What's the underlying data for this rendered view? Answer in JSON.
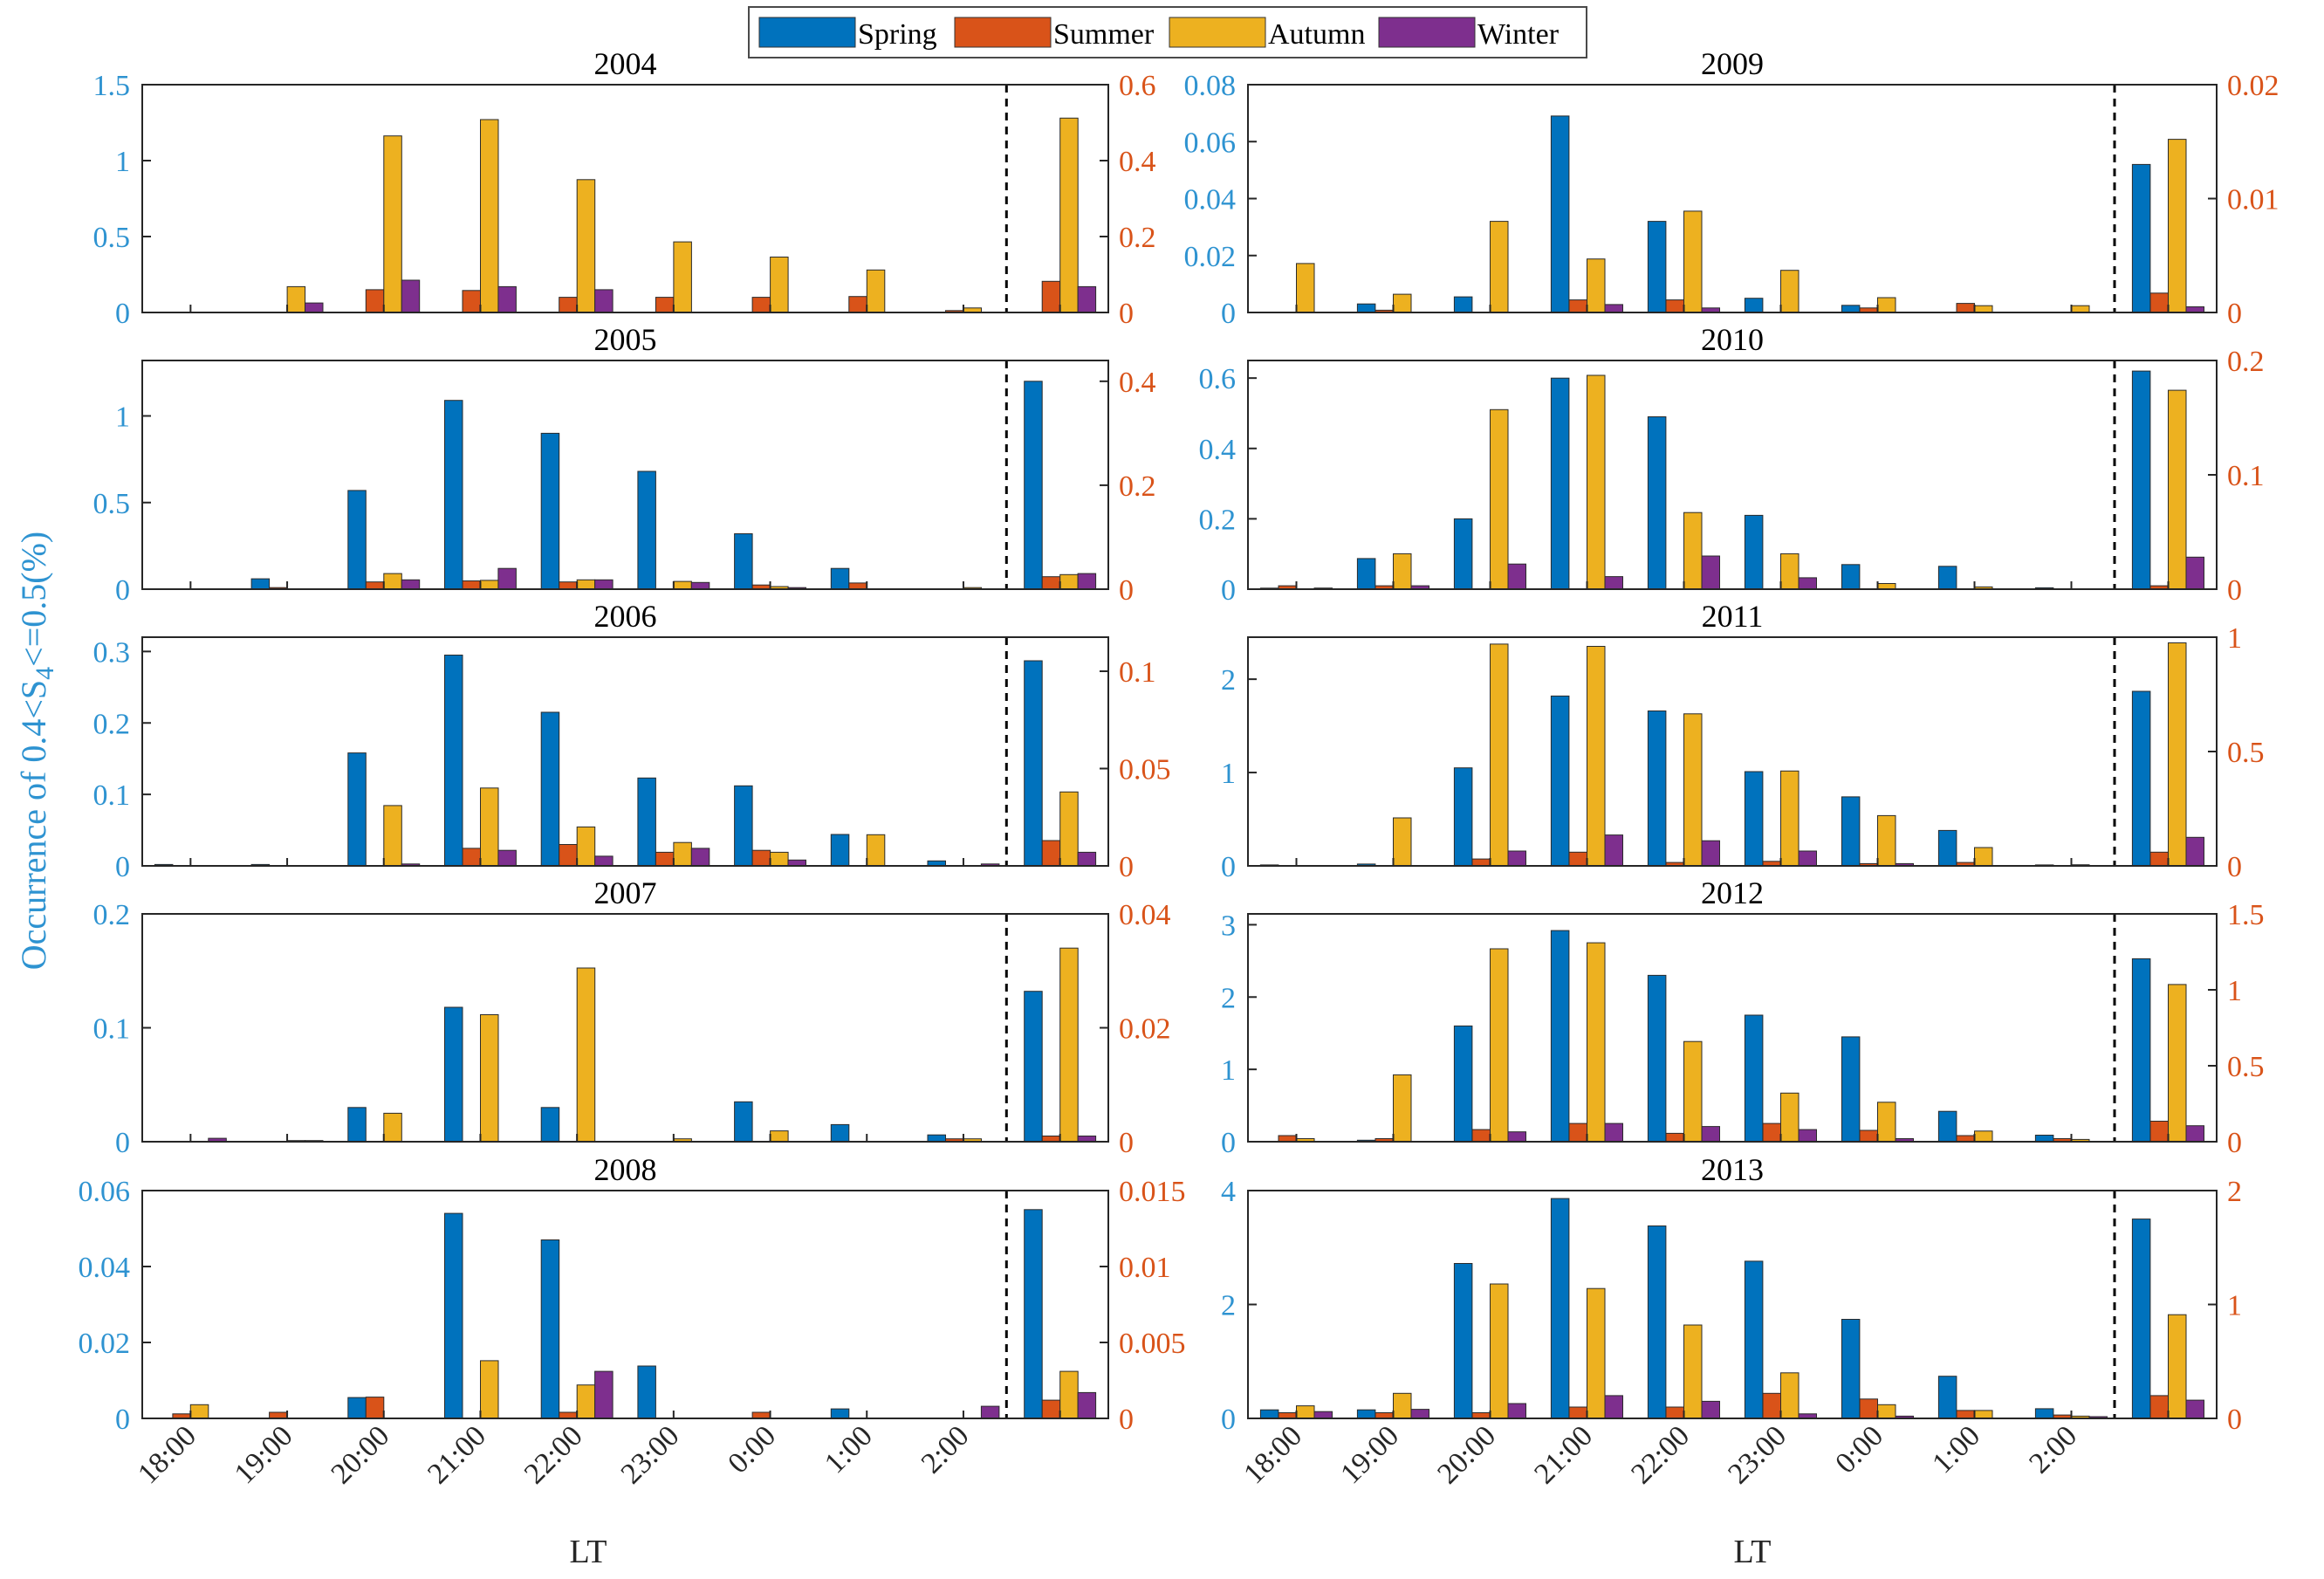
{
  "colors": {
    "spring": "#0072BD",
    "summer": "#D95319",
    "autumn": "#EDB120",
    "winter": "#7E2F8E",
    "left_axis": "#2E93D1",
    "right_axis": "#D95319"
  },
  "legend": {
    "spring": "Spring",
    "summer": "Summer",
    "autumn": "Autumn",
    "winter": "Winter"
  },
  "axes_text": {
    "ylabel_prefix": "Occurrence of 0.4<S",
    "ylabel_sub": "4",
    "ylabel_suffix": "<=0.5(%)",
    "xlabel_left": "LT",
    "xlabel_right": "LT"
  },
  "chart_data": {
    "type": "bar",
    "categories": [
      "18:00",
      "19:00",
      "20:00",
      "21:00",
      "22:00",
      "23:00",
      "0:00",
      "1:00",
      "2:00",
      ""
    ],
    "series_names": [
      "Spring",
      "Summer",
      "Autumn",
      "Winter"
    ],
    "note": "Spring uses left y-axis; Summer, Autumn, Winter use right y-axis. Last group (after dashed line) is the total.",
    "panels": [
      {
        "title": "2004",
        "yleft": {
          "lim": [
            0,
            1.5
          ],
          "ticks": [
            0,
            0.5,
            1,
            1.5
          ],
          "labels": [
            "0",
            "0.5",
            "1",
            "1.5"
          ]
        },
        "yright": {
          "lim": [
            0,
            0.6
          ],
          "ticks": [
            0,
            0.2,
            0.4,
            0.6
          ],
          "labels": [
            "0",
            "0.2",
            "0.4",
            "0.6"
          ]
        },
        "spring": [
          0,
          0,
          0,
          0,
          0,
          0,
          0,
          0,
          0,
          0
        ],
        "summer": [
          0,
          0,
          0.06,
          0.058,
          0.04,
          0.04,
          0.04,
          0.042,
          0.005,
          0.082
        ],
        "autumn": [
          0,
          0.068,
          0.465,
          0.508,
          0.35,
          0.186,
          0.146,
          0.112,
          0.012,
          0.512
        ],
        "winter": [
          0,
          0.025,
          0.085,
          0.068,
          0.06,
          0,
          0,
          0,
          0,
          0.068
        ]
      },
      {
        "title": "2005",
        "yleft": {
          "lim": [
            0,
            1.32
          ],
          "ticks": [
            0,
            0.5,
            1
          ],
          "labels": [
            "0",
            "0.5",
            "1"
          ]
        },
        "yright": {
          "lim": [
            0,
            0.44
          ],
          "ticks": [
            0,
            0.2,
            0.4
          ],
          "labels": [
            "0",
            "0.2",
            "0.4"
          ]
        },
        "spring": [
          0,
          0.06,
          0.57,
          1.09,
          0.9,
          0.68,
          0.32,
          0.12,
          0,
          1.2
        ],
        "summer": [
          0,
          0.003,
          0.014,
          0.016,
          0.014,
          0,
          0.008,
          0.012,
          0,
          0.024
        ],
        "autumn": [
          0,
          0,
          0.03,
          0.017,
          0.018,
          0.015,
          0.005,
          0,
          0.003,
          0.028
        ],
        "winter": [
          0,
          0,
          0.018,
          0.04,
          0.018,
          0.013,
          0.003,
          0,
          0,
          0.03
        ]
      },
      {
        "title": "2006",
        "yleft": {
          "lim": [
            0,
            0.32
          ],
          "ticks": [
            0,
            0.1,
            0.2,
            0.3
          ],
          "labels": [
            "0",
            "0.1",
            "0.2",
            "0.3"
          ]
        },
        "yright": {
          "lim": [
            0,
            0.1175
          ],
          "ticks": [
            0,
            0.05,
            0.1
          ],
          "labels": [
            "0",
            "0.05",
            "0.1"
          ]
        },
        "spring": [
          0.002,
          0.002,
          0.158,
          0.295,
          0.215,
          0.123,
          0.112,
          0.044,
          0.007,
          0.287
        ],
        "summer": [
          0,
          0,
          0,
          0.009,
          0.011,
          0.007,
          0.008,
          0,
          0,
          0.013
        ],
        "autumn": [
          0,
          0,
          0.031,
          0.04,
          0.02,
          0.012,
          0.007,
          0.016,
          0,
          0.038
        ],
        "winter": [
          0,
          0,
          0.001,
          0.008,
          0.005,
          0.009,
          0.003,
          0,
          0.001,
          0.007
        ]
      },
      {
        "title": "2007",
        "yleft": {
          "lim": [
            0,
            0.2
          ],
          "ticks": [
            0,
            0.1,
            0.2
          ],
          "labels": [
            "0",
            "0.1",
            "0.2"
          ]
        },
        "yright": {
          "lim": [
            0,
            0.04
          ],
          "ticks": [
            0,
            0.02,
            0.04
          ],
          "labels": [
            "0",
            "0.02",
            "0.04"
          ]
        },
        "spring": [
          0,
          0,
          0.03,
          0.118,
          0.03,
          0,
          0.035,
          0.015,
          0.006,
          0.132
        ],
        "summer": [
          0,
          0,
          0,
          0,
          0,
          0,
          0,
          0,
          0.0005,
          0.001
        ],
        "autumn": [
          0,
          0.0002,
          0.005,
          0.0223,
          0.0305,
          0.0005,
          0.0019,
          0,
          0.0005,
          0.034
        ],
        "winter": [
          0.0006,
          0.0002,
          0,
          0,
          0,
          0,
          0,
          0,
          0,
          0.001
        ]
      },
      {
        "title": "2008",
        "yleft": {
          "lim": [
            0,
            0.06
          ],
          "ticks": [
            0,
            0.02,
            0.04,
            0.06
          ],
          "labels": [
            "0",
            "0.02",
            "0.04",
            "0.06"
          ]
        },
        "yright": {
          "lim": [
            0,
            0.015
          ],
          "ticks": [
            0,
            0.005,
            0.01,
            0.015
          ],
          "labels": [
            "0",
            "0.005",
            "0.01",
            "0.015"
          ]
        },
        "spring": [
          0,
          0,
          0.0055,
          0.054,
          0.047,
          0.0138,
          0,
          0.0025,
          0,
          0.055
        ],
        "summer": [
          0.0003,
          0.0004,
          0.0014,
          0,
          0.0004,
          0,
          0.0004,
          0,
          0,
          0.0012
        ],
        "autumn": [
          0.0009,
          0,
          0,
          0.0038,
          0.0022,
          0,
          0,
          0,
          0,
          0.0031
        ],
        "winter": [
          0,
          0,
          0,
          0,
          0.0031,
          0,
          0,
          0,
          0.0008,
          0.0017
        ]
      },
      {
        "title": "2009",
        "yleft": {
          "lim": [
            0,
            0.08
          ],
          "ticks": [
            0,
            0.02,
            0.04,
            0.06,
            0.08
          ],
          "labels": [
            "0",
            "0.02",
            "0.04",
            "0.06",
            "0.08"
          ]
        },
        "yright": {
          "lim": [
            0,
            0.02
          ],
          "ticks": [
            0,
            0.01,
            0.02
          ],
          "labels": [
            "0",
            "0.01",
            "0.02"
          ]
        },
        "spring": [
          0,
          0.003,
          0.0055,
          0.069,
          0.032,
          0.005,
          0.0025,
          0,
          0,
          0.052
        ],
        "summer": [
          0,
          0.0002,
          0,
          0.0011,
          0.0011,
          0,
          0.0004,
          0.0008,
          0,
          0.0017
        ],
        "autumn": [
          0.0043,
          0.0016,
          0.008,
          0.0047,
          0.0089,
          0.0037,
          0.0013,
          0.0006,
          0.0006,
          0.0152
        ],
        "winter": [
          0,
          0,
          0,
          0.0007,
          0.0004,
          0,
          0,
          0,
          0,
          0.0005
        ]
      },
      {
        "title": "2010",
        "yleft": {
          "lim": [
            0,
            0.65
          ],
          "ticks": [
            0,
            0.2,
            0.4,
            0.6
          ],
          "labels": [
            "0",
            "0.2",
            "0.4",
            "0.6"
          ]
        },
        "yright": {
          "lim": [
            0,
            0.2
          ],
          "ticks": [
            0,
            0.1,
            0.2
          ],
          "labels": [
            "0",
            "0.1",
            "0.2"
          ]
        },
        "spring": [
          0.003,
          0.087,
          0.2,
          0.6,
          0.49,
          0.21,
          0.07,
          0.065,
          0.004,
          0.62
        ],
        "summer": [
          0.003,
          0.003,
          0,
          0,
          0,
          0,
          0,
          0,
          0,
          0.003
        ],
        "autumn": [
          0,
          0.031,
          0.157,
          0.187,
          0.067,
          0.031,
          0.005,
          0.002,
          0,
          0.174
        ],
        "winter": [
          0.001,
          0.003,
          0.022,
          0.011,
          0.029,
          0.01,
          0,
          0,
          0,
          0.028
        ]
      },
      {
        "title": "2011",
        "yleft": {
          "lim": [
            0,
            2.45
          ],
          "ticks": [
            0,
            1,
            2
          ],
          "labels": [
            "0",
            "1",
            "2"
          ]
        },
        "yright": {
          "lim": [
            0,
            1
          ],
          "ticks": [
            0,
            0.5,
            1
          ],
          "labels": [
            "0",
            "0.5",
            "1"
          ]
        },
        "spring": [
          0.01,
          0.02,
          1.05,
          1.82,
          1.66,
          1.01,
          0.74,
          0.38,
          0.01,
          1.87
        ],
        "summer": [
          0,
          0,
          0.03,
          0.06,
          0.015,
          0.02,
          0.01,
          0.015,
          0,
          0.06
        ],
        "autumn": [
          0,
          0.21,
          0.97,
          0.96,
          0.665,
          0.415,
          0.22,
          0.08,
          0.005,
          0.975
        ],
        "winter": [
          0,
          0,
          0.065,
          0.135,
          0.11,
          0.065,
          0.01,
          0,
          0,
          0.125
        ]
      },
      {
        "title": "2012",
        "yleft": {
          "lim": [
            0,
            3.15
          ],
          "ticks": [
            0,
            1,
            2,
            3
          ],
          "labels": [
            "0",
            "1",
            "2",
            "3"
          ]
        },
        "yright": {
          "lim": [
            0,
            1.5
          ],
          "ticks": [
            0,
            0.5,
            1,
            1.5
          ],
          "labels": [
            "0",
            "0.5",
            "1",
            "1.5"
          ]
        },
        "spring": [
          0,
          0.02,
          1.6,
          2.92,
          2.3,
          1.75,
          1.45,
          0.42,
          0.09,
          2.53
        ],
        "summer": [
          0.04,
          0.02,
          0.08,
          0.12,
          0.055,
          0.12,
          0.075,
          0.04,
          0.02,
          0.135
        ],
        "autumn": [
          0.02,
          0.44,
          1.27,
          1.31,
          0.66,
          0.32,
          0.26,
          0.07,
          0.015,
          1.035
        ],
        "winter": [
          0,
          0,
          0.065,
          0.12,
          0.1,
          0.08,
          0.02,
          0,
          0,
          0.105
        ]
      },
      {
        "title": "2013",
        "yleft": {
          "lim": [
            0,
            4
          ],
          "ticks": [
            0,
            2,
            4
          ],
          "labels": [
            "0",
            "2",
            "4"
          ]
        },
        "yright": {
          "lim": [
            0,
            2
          ],
          "ticks": [
            0,
            1,
            2
          ],
          "labels": [
            "0",
            "1",
            "2"
          ]
        },
        "spring": [
          0.15,
          0.15,
          2.72,
          3.86,
          3.38,
          2.76,
          1.74,
          0.74,
          0.17,
          3.5
        ],
        "summer": [
          0.05,
          0.05,
          0.05,
          0.1,
          0.1,
          0.22,
          0.17,
          0.07,
          0.03,
          0.2
        ],
        "autumn": [
          0.11,
          0.22,
          1.18,
          1.14,
          0.82,
          0.4,
          0.12,
          0.07,
          0.02,
          0.91
        ],
        "winter": [
          0.06,
          0.08,
          0.13,
          0.2,
          0.15,
          0.04,
          0.02,
          0,
          0.015,
          0.16
        ]
      }
    ]
  }
}
